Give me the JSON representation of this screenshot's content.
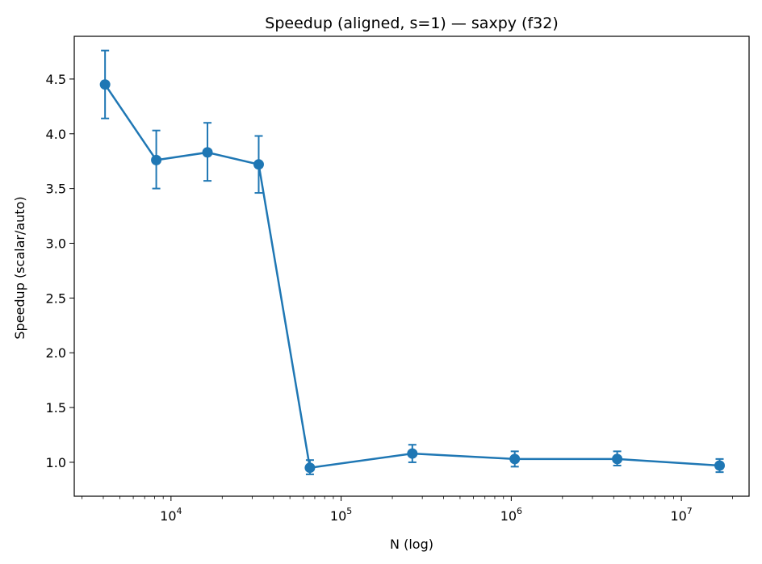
{
  "chart_data": {
    "type": "line",
    "title": "Speedup (aligned, s=1) — saxpy (f32)",
    "xlabel": "N (log)",
    "ylabel": "Speedup (scalar/auto)",
    "x_scale": "log",
    "xlim": [
      2700,
      25000000
    ],
    "ylim": [
      0.69,
      4.89
    ],
    "grid": false,
    "legend": "none",
    "x_ticks": [
      {
        "value": 10000,
        "base": "10",
        "exp": "4"
      },
      {
        "value": 100000,
        "base": "10",
        "exp": "5"
      },
      {
        "value": 1000000,
        "base": "10",
        "exp": "6"
      },
      {
        "value": 10000000,
        "base": "10",
        "exp": "7"
      }
    ],
    "y_ticks": [
      {
        "value": 1.0,
        "label": "1.0"
      },
      {
        "value": 1.5,
        "label": "1.5"
      },
      {
        "value": 2.0,
        "label": "2.0"
      },
      {
        "value": 2.5,
        "label": "2.5"
      },
      {
        "value": 3.0,
        "label": "3.0"
      },
      {
        "value": 3.5,
        "label": "3.5"
      },
      {
        "value": 4.0,
        "label": "4.0"
      },
      {
        "value": 4.5,
        "label": "4.5"
      }
    ],
    "series": [
      {
        "color": "#1f77b4",
        "x": [
          4096,
          8192,
          16384,
          32768,
          65536,
          262144,
          1048576,
          4194304,
          16777216
        ],
        "y": [
          4.45,
          3.76,
          3.83,
          3.72,
          0.95,
          1.08,
          1.03,
          1.03,
          0.97
        ],
        "err_low": [
          4.14,
          3.5,
          3.57,
          3.46,
          0.89,
          1.0,
          0.96,
          0.97,
          0.91
        ],
        "err_high": [
          4.76,
          4.03,
          4.1,
          3.98,
          1.02,
          1.16,
          1.1,
          1.1,
          1.03
        ]
      }
    ]
  }
}
